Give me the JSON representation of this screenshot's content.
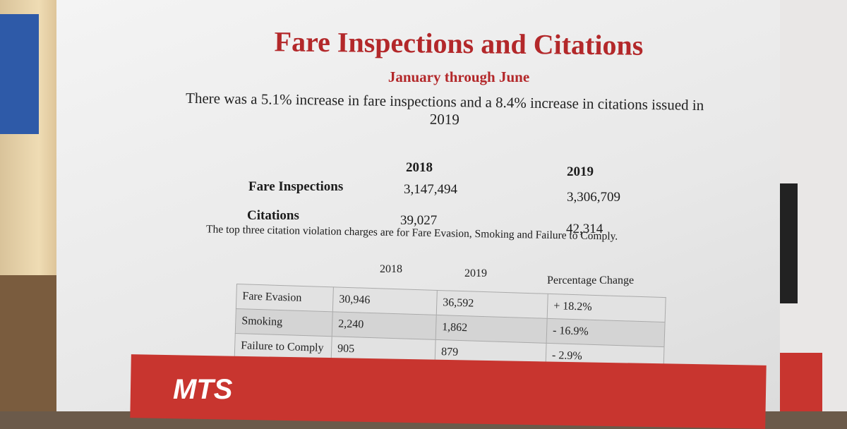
{
  "header": {
    "title": "Fare Inspections and Citations",
    "subtitle": "January through June"
  },
  "summary": "There was a 5.1% increase in fare inspections and a 8.4% increase in citations issued in 2019",
  "totals": {
    "years": [
      "2018",
      "2019"
    ],
    "rows": [
      {
        "label": "Fare Inspections",
        "values": [
          "3,147,494",
          "3,306,709"
        ]
      },
      {
        "label": "Citations",
        "values": [
          "39,027",
          "42,314"
        ]
      }
    ]
  },
  "violations_intro": "The top three citation violation charges are for Fare Evasion, Smoking and Failure to Comply.",
  "violations": {
    "columns": [
      "2018",
      "2019",
      "Percentage Change"
    ],
    "rows": [
      [
        "Fare Evasion",
        "30,946",
        "36,592",
        "+ 18.2%"
      ],
      [
        "Smoking",
        "2,240",
        "1,862",
        "- 16.9%"
      ],
      [
        "Failure to Comply",
        "905",
        "879",
        "- 2.9%"
      ]
    ]
  },
  "footer": {
    "logo": "MTS"
  }
}
